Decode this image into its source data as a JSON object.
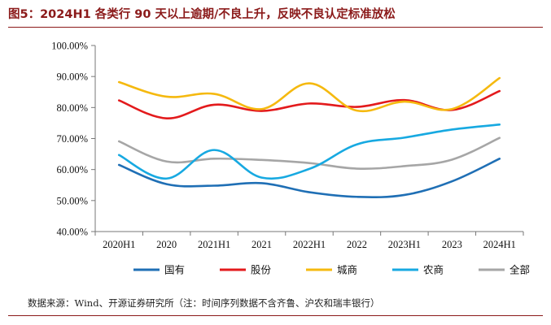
{
  "header": {
    "title": "图5：2024H1 各类行 90 天以上逾期/不良上升，反映不良认定标准放松"
  },
  "footer": {
    "source": "数据来源：Wind、开源证券研究所（注：时间序列数据不含齐鲁、沪农和瑞丰银行）"
  },
  "chart_data": {
    "type": "line",
    "categories": [
      "2020H1",
      "2020",
      "2021H1",
      "2021",
      "2022H1",
      "2022",
      "2023H1",
      "2023",
      "2024H1"
    ],
    "ylim": [
      40,
      100
    ],
    "yticks": [
      40,
      50,
      60,
      70,
      80,
      90,
      100
    ],
    "ytick_labels": [
      "40.00%",
      "50.00%",
      "60.00%",
      "70.00%",
      "80.00%",
      "90.00%",
      "100.00%"
    ],
    "grid": false,
    "legend_position": "bottom",
    "series": [
      {
        "name": "国有",
        "color": "#1f6fb5",
        "values": [
          61.5,
          55.3,
          54.8,
          55.6,
          52.7,
          51.2,
          51.8,
          56.2,
          63.5
        ]
      },
      {
        "name": "股份",
        "color": "#e31a1c",
        "values": [
          82.3,
          76.5,
          80.9,
          78.9,
          81.3,
          80.2,
          82.4,
          79.2,
          85.3
        ]
      },
      {
        "name": "城商",
        "color": "#f5b90f",
        "values": [
          88.2,
          83.5,
          84.4,
          79.5,
          87.8,
          79.0,
          81.9,
          79.5,
          89.5
        ]
      },
      {
        "name": "农商",
        "color": "#17a9e1",
        "values": [
          64.7,
          57.1,
          66.3,
          57.4,
          60.2,
          68.1,
          70.3,
          72.9,
          74.5
        ]
      },
      {
        "name": "全部",
        "color": "#a6a6a6",
        "values": [
          69.1,
          62.6,
          63.5,
          63.1,
          62.1,
          60.3,
          61.1,
          63.2,
          70.2
        ]
      }
    ]
  }
}
